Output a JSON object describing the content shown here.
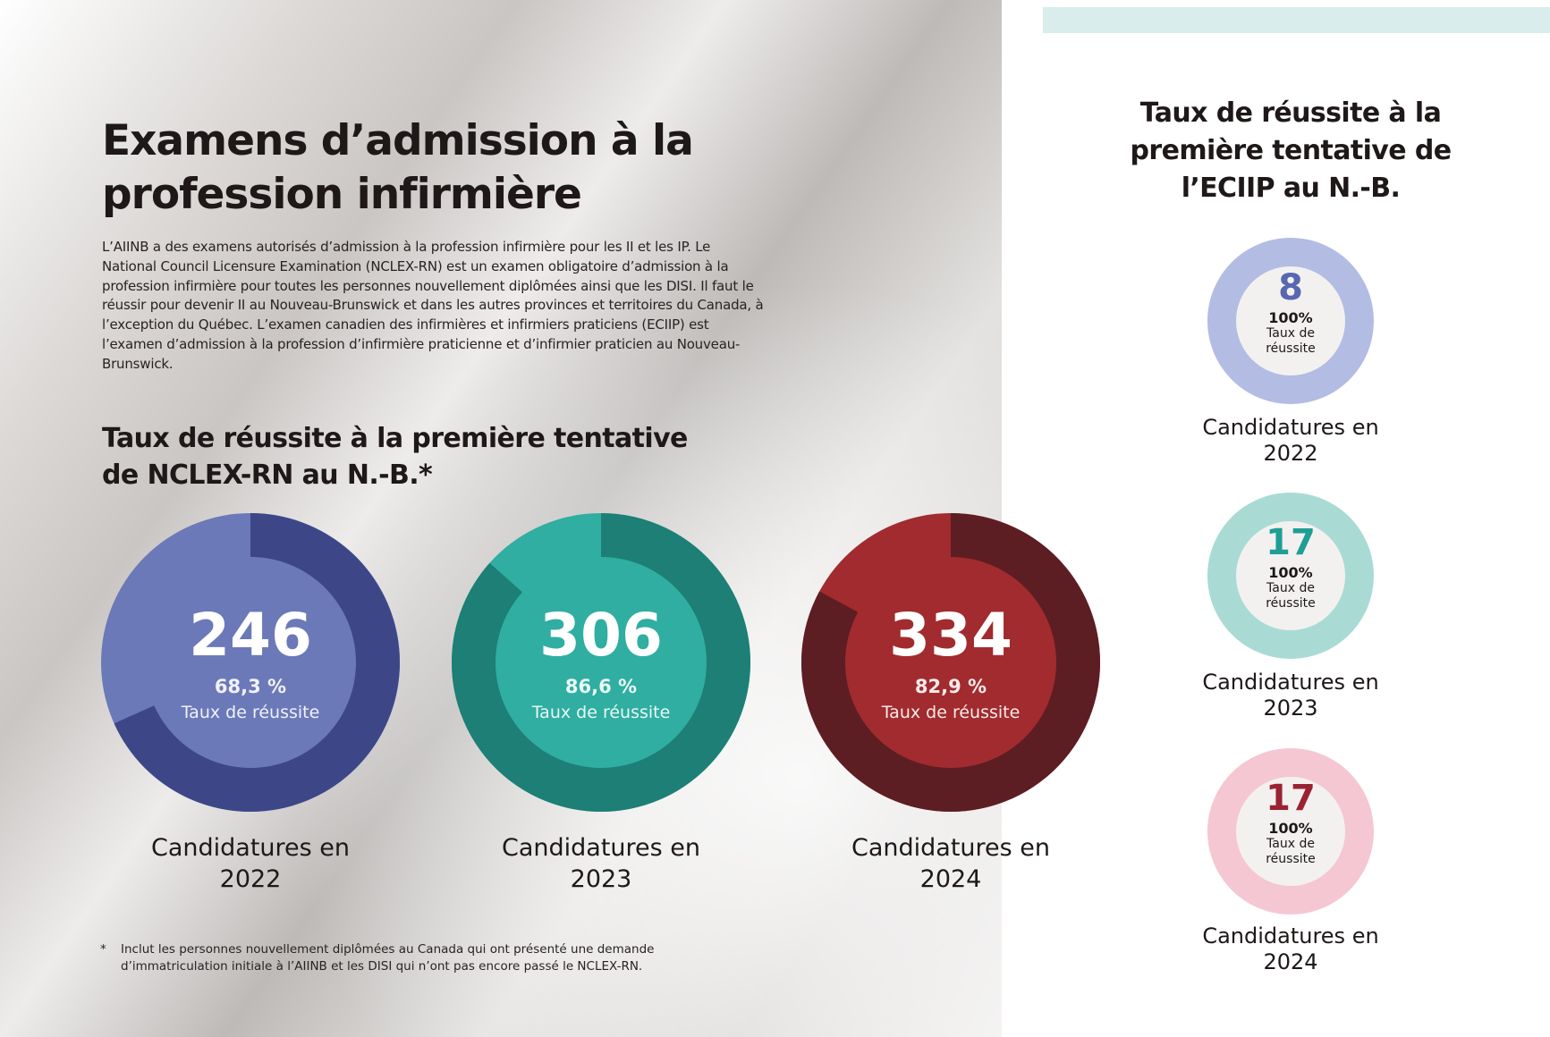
{
  "main": {
    "title_line1": "Examens d’admission à la",
    "title_line2": "profession infirmière",
    "intro": "L’AIINB a des examens autorisés d’admission à la profession infirmière pour les II et les IP. Le National Council Licensure Examination (NCLEX-RN) est un examen obligatoire d’admission à la profession infirmière pour toutes les personnes nouvellement diplômées ainsi que les DISI. Il faut le réussir pour devenir II au Nouveau-Brunswick et dans les autres provinces et territoires du Canada, à l’exception du Québec. L’examen canadien des infirmières et infirmiers praticiens (ECIIP) est l’examen d’admission à la profession d’infirmière praticienne et d’infirmier praticien au Nouveau-Brunswick.",
    "subtitle_line1": "Taux de réussite à la première tentative",
    "subtitle_line2": "de NCLEX-RN au N.-B.*",
    "footnote_mark": "*",
    "footnote": "Inclut les personnes nouvellement diplômées au Canada qui ont présenté une demande d’immatriculation initiale à l’AIINB et les DISI qui n’ont pas encore passé le NCLEX-RN."
  },
  "nclex": [
    {
      "count": "246",
      "rate_label": "68,3 %",
      "rate": 68.3,
      "caption": "Taux de réussite",
      "label1": "Candidatures en",
      "label2": "2022",
      "light": "#6c79b8",
      "dark": "#3d4788"
    },
    {
      "count": "306",
      "rate_label": "86,6 %",
      "rate": 86.6,
      "caption": "Taux de réussite",
      "label1": "Candidatures en",
      "label2": "2023",
      "light": "#2faea1",
      "dark": "#1d7f75"
    },
    {
      "count": "334",
      "rate_label": "82,9 %",
      "rate": 82.9,
      "caption": "Taux de réussite",
      "label1": "Candidatures en",
      "label2": "2024",
      "light": "#a12b2e",
      "dark": "#5c1e22"
    }
  ],
  "eciip": {
    "title_line1": "Taux de réussite à la",
    "title_line2": "première tentative de",
    "title_line3": "l’ECIIP au N.-B.",
    "items": [
      {
        "count": "8",
        "rate_label": "100%",
        "caption1": "Taux de",
        "caption2": "réussite",
        "label1": "Candidatures en",
        "label2": "2022",
        "ring": "#b3bce3",
        "accent": "#5867b0"
      },
      {
        "count": "17",
        "rate_label": "100%",
        "caption1": "Taux de",
        "caption2": "réussite",
        "label1": "Candidatures en",
        "label2": "2023",
        "ring": "#a9dbd4",
        "accent": "#1f9e95"
      },
      {
        "count": "17",
        "rate_label": "100%",
        "caption1": "Taux de",
        "caption2": "réussite",
        "label1": "Candidatures en",
        "label2": "2024",
        "ring": "#f5c7d2",
        "accent": "#9b2230"
      }
    ]
  }
}
